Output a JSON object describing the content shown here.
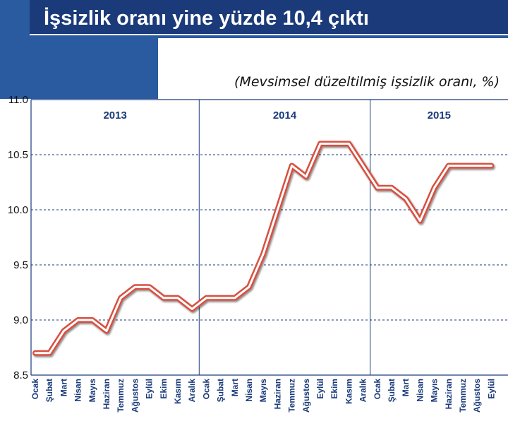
{
  "chart_data": {
    "type": "line",
    "title": "İşsizlik oranı yine yüzde 10,4 çıktı",
    "subtitle": "(Mevsimsel düzeltilmiş işsizlik oranı, %)",
    "xlabel": "",
    "ylabel": "",
    "ylim": [
      8.5,
      11.0
    ],
    "yticks": [
      "11.0",
      "10.5",
      "10.0",
      "9.5",
      "9.0",
      "8.5"
    ],
    "grid": true,
    "years": [
      "2013",
      "2014",
      "2015"
    ],
    "categories": [
      "Ocak",
      "Şubat",
      "Mart",
      "Nisan",
      "Mayıs",
      "Haziran",
      "Temmuz",
      "Ağustos",
      "Eylül",
      "Ekim",
      "Kasım",
      "Aralık",
      "Ocak",
      "Şubat",
      "Mart",
      "Nisan",
      "Mayıs",
      "Haziran",
      "Temmuz",
      "Ağustos",
      "Eylül",
      "Ekim",
      "Kasım",
      "Aralık",
      "Ocak",
      "Şubat",
      "Mart",
      "Nisan",
      "Mayıs",
      "Haziran",
      "Temmuz",
      "Ağustos",
      "Eylül"
    ],
    "values": [
      8.7,
      8.7,
      8.9,
      9.0,
      9.0,
      8.9,
      9.2,
      9.3,
      9.3,
      9.2,
      9.2,
      9.1,
      9.2,
      9.2,
      9.2,
      9.3,
      9.6,
      10.0,
      10.4,
      10.3,
      10.6,
      10.6,
      10.6,
      10.4,
      10.2,
      10.2,
      10.1,
      9.9,
      10.2,
      10.4,
      10.4,
      10.4,
      10.4
    ]
  },
  "colors": {
    "header_band": "#2a5aa0",
    "title_box": "#1a3a7a",
    "line_outer": "#d85040",
    "line_inner": "#ffffff",
    "grid": "#1a3a7a"
  }
}
